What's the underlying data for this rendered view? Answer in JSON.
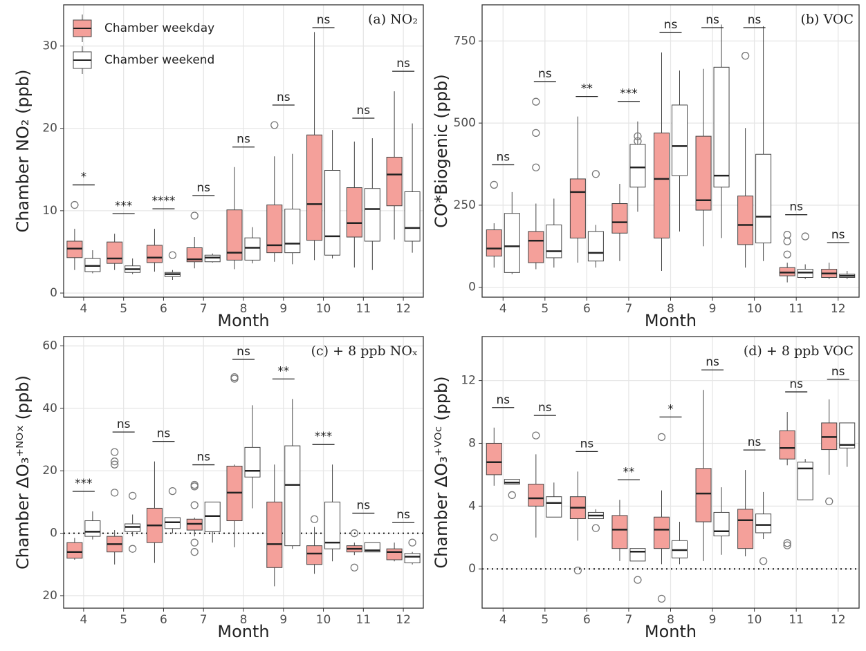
{
  "chart_data": [
    {
      "type": "box",
      "annotation": "(a) NO₂",
      "ylabel": "Chamber NO₂ (ppb)",
      "xlabel": "Month",
      "legend": "top-left",
      "grid": true,
      "categories": [
        "4",
        "5",
        "6",
        "7",
        "8",
        "9",
        "10",
        "11",
        "12"
      ],
      "ylim": [
        -0.5,
        35
      ],
      "yticks": [
        0,
        10,
        20,
        30
      ],
      "significance": [
        "*",
        "***",
        "****",
        "ns",
        "ns",
        "ns",
        "ns",
        "ns",
        "ns"
      ],
      "series": [
        {
          "name": "Chamber weekday",
          "color": "#f4a09a",
          "min": [
            2.8,
            2.8,
            2.6,
            3.0,
            2.9,
            3.8,
            4.0,
            3.1,
            6.5
          ],
          "q1": [
            4.3,
            3.6,
            3.7,
            3.8,
            4.0,
            4.9,
            6.4,
            6.8,
            10.6
          ],
          "median": [
            5.4,
            4.2,
            4.3,
            4.1,
            4.9,
            5.8,
            10.8,
            8.5,
            14.4
          ],
          "q3": [
            6.3,
            6.2,
            5.8,
            5.5,
            10.1,
            10.7,
            19.2,
            12.8,
            16.5
          ],
          "max": [
            7.8,
            7.2,
            7.8,
            6.8,
            15.3,
            16.6,
            31.7,
            18.4,
            24.5
          ],
          "outliers": [
            [
              10.7
            ],
            [],
            [],
            [
              9.4
            ],
            [],
            [
              20.4
            ],
            [],
            [],
            []
          ]
        },
        {
          "name": "Chamber weekend",
          "color": "#ffffff",
          "min": [
            2.4,
            2.3,
            1.6,
            3.7,
            3.6,
            3.5,
            4.2,
            2.8,
            4.9
          ],
          "q1": [
            2.6,
            2.5,
            2.0,
            3.8,
            4.0,
            4.9,
            4.6,
            6.3,
            6.3
          ],
          "median": [
            3.3,
            2.9,
            2.3,
            4.3,
            5.5,
            6.0,
            6.9,
            10.2,
            7.9
          ],
          "q3": [
            4.2,
            3.3,
            2.5,
            4.6,
            6.7,
            10.2,
            14.9,
            12.7,
            12.3
          ],
          "max": [
            5.2,
            4.2,
            2.8,
            4.8,
            8.0,
            16.9,
            19.8,
            18.8,
            20.6
          ],
          "outliers": [
            [],
            [],
            [
              4.6
            ],
            [],
            [],
            [],
            [],
            [],
            []
          ]
        }
      ]
    },
    {
      "type": "box",
      "annotation": "(b) VOC",
      "ylabel": "CO*Biogenic (ppb)",
      "xlabel": "Month",
      "grid": true,
      "categories": [
        "4",
        "5",
        "6",
        "7",
        "8",
        "9",
        "10",
        "11",
        "12"
      ],
      "ylim": [
        -30,
        860
      ],
      "yticks": [
        0,
        250,
        500,
        750
      ],
      "significance": [
        "ns",
        "ns",
        "**",
        "***",
        "ns",
        "ns",
        "ns",
        "ns",
        "ns"
      ],
      "series": [
        {
          "color": "#f4a09a",
          "min": [
            60,
            55,
            75,
            80,
            50,
            125,
            60,
            15,
            25
          ],
          "q1": [
            95,
            75,
            150,
            165,
            150,
            235,
            130,
            35,
            30
          ],
          "median": [
            118,
            142,
            290,
            198,
            330,
            265,
            190,
            45,
            42
          ],
          "q3": [
            175,
            170,
            330,
            255,
            470,
            460,
            278,
            60,
            55
          ],
          "max": [
            195,
            255,
            520,
            315,
            715,
            665,
            485,
            75,
            75
          ],
          "outliers": [
            [
              312
            ],
            [
              365,
              470,
              565
            ],
            [],
            [],
            [],
            [],
            [
              705
            ],
            [
              100,
              140,
              160
            ],
            []
          ]
        },
        {
          "color": "#ffffff",
          "min": [
            40,
            60,
            60,
            230,
            170,
            150,
            80,
            25,
            25
          ],
          "q1": [
            45,
            90,
            80,
            305,
            340,
            305,
            135,
            30,
            30
          ],
          "median": [
            125,
            110,
            105,
            365,
            430,
            340,
            215,
            45,
            35
          ],
          "q3": [
            225,
            190,
            170,
            435,
            555,
            670,
            405,
            55,
            40
          ],
          "max": [
            290,
            270,
            190,
            505,
            660,
            800,
            795,
            70,
            50
          ],
          "outliers": [
            [],
            [],
            [
              345
            ],
            [
              445,
              460
            ],
            [],
            [],
            [],
            [
              155
            ],
            []
          ]
        }
      ]
    },
    {
      "type": "box",
      "annotation": "(c) + 8 ppb NOₓ",
      "ylabel": "Chamber  ΔO₃⁺ᴺᴼˣ (ppb)",
      "xlabel": "Month",
      "grid": true,
      "reference_line": 0,
      "categories": [
        "4",
        "5",
        "6",
        "7",
        "8",
        "9",
        "10",
        "11",
        "12"
      ],
      "ylim": [
        -24,
        63
      ],
      "yticks": [
        {
          "value": -20,
          "label": "20"
        },
        0,
        20,
        40,
        60
      ],
      "significance": [
        "***",
        "ns",
        "ns",
        "ns",
        "ns",
        "**",
        "***",
        "ns",
        "ns"
      ],
      "series": [
        {
          "color": "#f4a09a",
          "min": [
            -8.5,
            -10,
            -9.5,
            -1,
            -4.5,
            -17,
            -13,
            -7,
            -9
          ],
          "q1": [
            -8,
            -6,
            -3,
            1,
            4,
            -11,
            -10,
            -6,
            -8.5
          ],
          "median": [
            -6,
            -3.5,
            2.5,
            3,
            13,
            -3.5,
            -6.5,
            -5,
            -6
          ],
          "q3": [
            -3,
            -1,
            8,
            4.5,
            21.5,
            10,
            -4,
            -4,
            -5
          ],
          "max": [
            -1.5,
            1,
            23,
            5,
            22,
            22,
            2,
            -3,
            -3
          ],
          "outliers": [
            [],
            [
              13,
              22,
              23,
              26
            ],
            [],
            [
              15,
              15.5,
              9,
              -3,
              -6
            ],
            [
              49.5,
              50
            ],
            [],
            [
              4.5
            ],
            [
              0,
              -11
            ],
            []
          ]
        },
        {
          "color": "#ffffff",
          "min": [
            -2,
            -1,
            0,
            -3,
            8,
            -5,
            -9,
            -6,
            -10
          ],
          "q1": [
            -1,
            0.5,
            1.5,
            0.5,
            18,
            -4,
            -5,
            -6,
            -9.5
          ],
          "median": [
            0.5,
            2,
            3.5,
            5.5,
            20,
            15.5,
            -3,
            -5.5,
            -7.5
          ],
          "q3": [
            4,
            3,
            5,
            10,
            27.5,
            28,
            10,
            -3,
            -6.5
          ],
          "max": [
            7,
            6,
            5,
            10,
            41,
            43,
            22,
            -3,
            -6
          ],
          "outliers": [
            [],
            [
              12,
              -5
            ],
            [
              13.5
            ],
            [],
            [],
            [],
            [],
            [],
            [
              -3
            ]
          ]
        }
      ]
    },
    {
      "type": "box",
      "annotation": "(d) + 8 ppb VOC",
      "ylabel": "Chamber  ΔO₃⁺ⱽᴼᶜ (ppb)",
      "xlabel": "Month",
      "grid": true,
      "reference_line": 0,
      "categories": [
        "4",
        "5",
        "6",
        "7",
        "8",
        "9",
        "10",
        "11",
        "12"
      ],
      "ylim": [
        -2.5,
        14.8
      ],
      "yticks": [
        0,
        4,
        8,
        12
      ],
      "significance": [
        "ns",
        "ns",
        "ns",
        "**",
        "*",
        "ns",
        "ns",
        "ns",
        "ns"
      ],
      "series": [
        {
          "color": "#f4a09a",
          "min": [
            5.3,
            2.0,
            1.8,
            0.5,
            0.3,
            0.5,
            0.8,
            6.6,
            6.0
          ],
          "q1": [
            6.0,
            4.0,
            3.2,
            1.3,
            1.3,
            3.0,
            1.3,
            7.0,
            7.6
          ],
          "median": [
            6.8,
            4.5,
            3.9,
            2.5,
            2.5,
            4.8,
            3.1,
            7.7,
            8.4
          ],
          "q3": [
            8.0,
            5.4,
            4.6,
            3.4,
            3.3,
            6.4,
            3.8,
            8.8,
            9.3
          ],
          "max": [
            9.0,
            7.3,
            6.2,
            4.4,
            5.0,
            11.4,
            6.3,
            10.0,
            10.8
          ],
          "outliers": [
            [
              2.0
            ],
            [
              8.5
            ],
            [
              -0.1
            ],
            [],
            [
              8.4,
              -1.9
            ],
            [],
            [],
            [
              1.5,
              1.65
            ],
            [
              4.3
            ]
          ]
        },
        {
          "color": "#ffffff",
          "min": [
            5.4,
            3.3,
            3.2,
            0.5,
            0.3,
            0.9,
            1.9,
            4.4,
            6.5
          ],
          "q1": [
            5.4,
            3.3,
            3.2,
            0.5,
            0.7,
            2.1,
            2.3,
            4.4,
            7.7
          ],
          "median": [
            5.5,
            4.2,
            3.4,
            1.1,
            1.2,
            2.4,
            2.8,
            6.4,
            7.9
          ],
          "q3": [
            5.7,
            4.6,
            3.6,
            1.3,
            1.8,
            3.6,
            3.5,
            6.8,
            9.3
          ],
          "max": [
            5.7,
            5.5,
            3.8,
            1.3,
            3.0,
            5.2,
            4.9,
            7.0,
            9.3
          ],
          "outliers": [
            [
              4.7
            ],
            [],
            [
              2.6
            ],
            [
              -0.7
            ],
            [],
            [],
            [
              0.5
            ],
            [],
            []
          ]
        }
      ]
    }
  ]
}
